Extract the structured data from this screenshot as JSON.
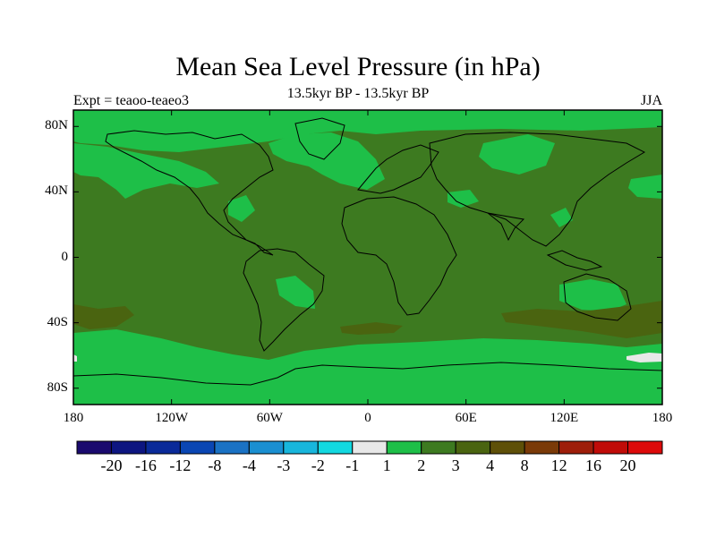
{
  "title": "Mean Sea Level Pressure (in hPa)",
  "subtitle": "13.5kyr BP - 13.5kyr BP",
  "left_string": "Expt = teaoo-teaeo3",
  "right_string": "JJA",
  "map": {
    "projection": "cylindrical-equidistant",
    "lon_range": [
      -180,
      180
    ],
    "lat_range": [
      -90,
      90
    ],
    "background_class": "3",
    "coastlines": true
  },
  "axes": {
    "y_ticks": [
      {
        "label": "80N",
        "lat": 80
      },
      {
        "label": "40N",
        "lat": 40
      },
      {
        "label": "0",
        "lat": 0
      },
      {
        "label": "40S",
        "lat": -40
      },
      {
        "label": "80S",
        "lat": -80
      }
    ],
    "x_ticks": [
      {
        "label": "180",
        "lon": -180
      },
      {
        "label": "120W",
        "lon": -120
      },
      {
        "label": "60W",
        "lon": -60
      },
      {
        "label": "0",
        "lon": 0
      },
      {
        "label": "60E",
        "lon": 60
      },
      {
        "label": "120E",
        "lon": 120
      },
      {
        "label": "180",
        "lon": 180
      }
    ]
  },
  "colorbar": {
    "colors": [
      "#1a0a6e",
      "#0d1580",
      "#0a2a99",
      "#0a46b3",
      "#1a72c4",
      "#1a8fd1",
      "#18b6dc",
      "#12d8e0",
      "#e8e8e8",
      "#1ebf48",
      "#3d7a20",
      "#4a6410",
      "#5e5008",
      "#7a3a08",
      "#9e1e0a",
      "#c00c08",
      "#dd0a0a"
    ],
    "labels": [
      "-20",
      "-16",
      "-12",
      "-8",
      "-4",
      "-3",
      "-2",
      "-1",
      "1",
      "2",
      "3",
      "4",
      "8",
      "12",
      "16",
      "20"
    ]
  },
  "regions": [
    {
      "class": "2",
      "name": "north-pacific-band"
    },
    {
      "class": "2",
      "name": "arctic"
    },
    {
      "class": "2",
      "name": "north-atlantic"
    },
    {
      "class": "2",
      "name": "southern-ocean-band"
    },
    {
      "class": "2",
      "name": "south-atlantic-patch"
    },
    {
      "class": "4",
      "name": "south-pacific-patch"
    },
    {
      "class": "4",
      "name": "south-indian-patch"
    },
    {
      "class": "4",
      "name": "australia-south-patch"
    },
    {
      "class": "1",
      "name": "ross-sea-patch"
    }
  ]
}
